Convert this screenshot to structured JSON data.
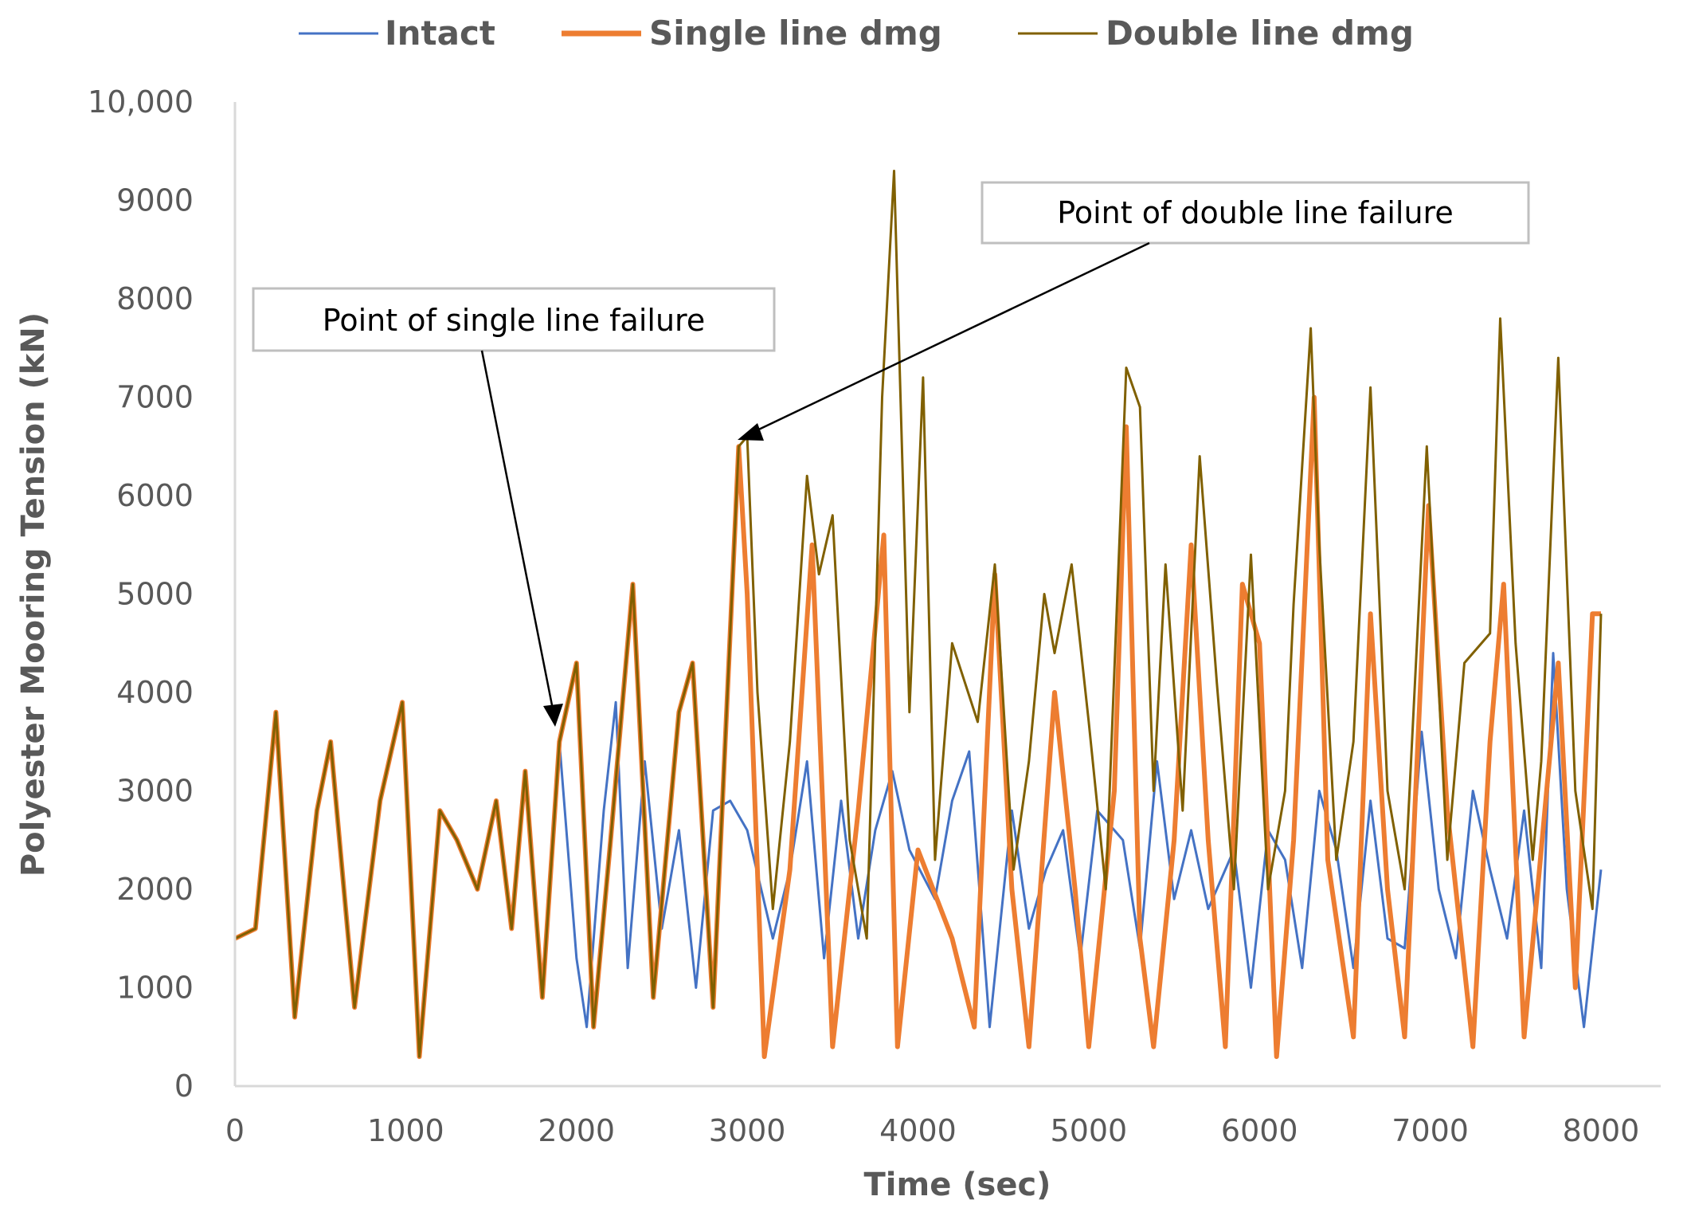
{
  "chart_data": {
    "type": "line",
    "xlabel": "Time (sec)",
    "ylabel": "Polyester Mooring  Tension (kN)",
    "xlim": [
      0,
      8000
    ],
    "ylim": [
      0,
      10000
    ],
    "x_ticks": [
      "0",
      "1000",
      "2000",
      "3000",
      "4000",
      "5000",
      "6000",
      "7000",
      "8000"
    ],
    "y_ticks": [
      "0",
      "1000",
      "2000",
      "3000",
      "4000",
      "5000",
      "6000",
      "7000",
      "8000",
      "9000",
      "10,000"
    ],
    "grid": false,
    "legend_position": "top",
    "series": [
      {
        "name": "Intact",
        "color": "#4472C4",
        "points": [
          [
            0,
            1500
          ],
          [
            120,
            1600
          ],
          [
            240,
            3800
          ],
          [
            350,
            700
          ],
          [
            480,
            2800
          ],
          [
            560,
            3500
          ],
          [
            700,
            800
          ],
          [
            850,
            2900
          ],
          [
            980,
            3900
          ],
          [
            1080,
            300
          ],
          [
            1200,
            2800
          ],
          [
            1300,
            2500
          ],
          [
            1420,
            2000
          ],
          [
            1530,
            2900
          ],
          [
            1620,
            1600
          ],
          [
            1700,
            3200
          ],
          [
            1800,
            900
          ],
          [
            1900,
            3500
          ],
          [
            2000,
            1300
          ],
          [
            2060,
            600
          ],
          [
            2160,
            2800
          ],
          [
            2230,
            3900
          ],
          [
            2300,
            1200
          ],
          [
            2400,
            3300
          ],
          [
            2500,
            1600
          ],
          [
            2600,
            2600
          ],
          [
            2700,
            1000
          ],
          [
            2800,
            2800
          ],
          [
            2900,
            2900
          ],
          [
            3000,
            2600
          ],
          [
            3150,
            1500
          ],
          [
            3250,
            2200
          ],
          [
            3350,
            3300
          ],
          [
            3450,
            1300
          ],
          [
            3550,
            2900
          ],
          [
            3650,
            1500
          ],
          [
            3750,
            2600
          ],
          [
            3850,
            3200
          ],
          [
            3950,
            2400
          ],
          [
            4100,
            1900
          ],
          [
            4200,
            2900
          ],
          [
            4300,
            3400
          ],
          [
            4420,
            600
          ],
          [
            4550,
            2800
          ],
          [
            4650,
            1600
          ],
          [
            4750,
            2200
          ],
          [
            4850,
            2600
          ],
          [
            4950,
            1300
          ],
          [
            5050,
            2800
          ],
          [
            5200,
            2500
          ],
          [
            5300,
            1400
          ],
          [
            5400,
            3300
          ],
          [
            5500,
            1900
          ],
          [
            5600,
            2600
          ],
          [
            5700,
            1800
          ],
          [
            5850,
            2400
          ],
          [
            5950,
            1000
          ],
          [
            6050,
            2600
          ],
          [
            6150,
            2300
          ],
          [
            6250,
            1200
          ],
          [
            6350,
            3000
          ],
          [
            6450,
            2400
          ],
          [
            6550,
            1200
          ],
          [
            6650,
            2900
          ],
          [
            6750,
            1500
          ],
          [
            6850,
            1400
          ],
          [
            6950,
            3600
          ],
          [
            7050,
            2000
          ],
          [
            7150,
            1300
          ],
          [
            7250,
            3000
          ],
          [
            7350,
            2200
          ],
          [
            7450,
            1500
          ],
          [
            7550,
            2800
          ],
          [
            7650,
            1200
          ],
          [
            7720,
            4400
          ],
          [
            7800,
            2000
          ],
          [
            7900,
            600
          ],
          [
            8000,
            2200
          ]
        ]
      },
      {
        "name": "Single line dmg",
        "color": "#ED7D31",
        "points": [
          [
            0,
            1500
          ],
          [
            120,
            1600
          ],
          [
            240,
            3800
          ],
          [
            350,
            700
          ],
          [
            480,
            2800
          ],
          [
            560,
            3500
          ],
          [
            700,
            800
          ],
          [
            850,
            2900
          ],
          [
            980,
            3900
          ],
          [
            1080,
            300
          ],
          [
            1200,
            2800
          ],
          [
            1300,
            2500
          ],
          [
            1420,
            2000
          ],
          [
            1530,
            2900
          ],
          [
            1620,
            1600
          ],
          [
            1700,
            3200
          ],
          [
            1800,
            900
          ],
          [
            1900,
            3500
          ],
          [
            2000,
            4300
          ],
          [
            2100,
            600
          ],
          [
            2200,
            2500
          ],
          [
            2330,
            5100
          ],
          [
            2450,
            900
          ],
          [
            2600,
            3800
          ],
          [
            2680,
            4300
          ],
          [
            2800,
            800
          ],
          [
            2950,
            6500
          ],
          [
            3000,
            5000
          ],
          [
            3100,
            300
          ],
          [
            3250,
            2200
          ],
          [
            3380,
            5500
          ],
          [
            3500,
            400
          ],
          [
            3650,
            2800
          ],
          [
            3800,
            5600
          ],
          [
            3880,
            400
          ],
          [
            4000,
            2400
          ],
          [
            4200,
            1500
          ],
          [
            4330,
            600
          ],
          [
            4450,
            5200
          ],
          [
            4550,
            2000
          ],
          [
            4650,
            400
          ],
          [
            4800,
            4000
          ],
          [
            4920,
            2000
          ],
          [
            5000,
            400
          ],
          [
            5150,
            3000
          ],
          [
            5220,
            6700
          ],
          [
            5300,
            1500
          ],
          [
            5380,
            400
          ],
          [
            5500,
            2500
          ],
          [
            5600,
            5500
          ],
          [
            5700,
            2500
          ],
          [
            5800,
            400
          ],
          [
            5900,
            5100
          ],
          [
            6000,
            4500
          ],
          [
            6100,
            300
          ],
          [
            6200,
            2500
          ],
          [
            6320,
            7000
          ],
          [
            6400,
            2300
          ],
          [
            6550,
            500
          ],
          [
            6650,
            4800
          ],
          [
            6750,
            2000
          ],
          [
            6850,
            500
          ],
          [
            6990,
            5900
          ],
          [
            7100,
            2800
          ],
          [
            7250,
            400
          ],
          [
            7350,
            3500
          ],
          [
            7430,
            5100
          ],
          [
            7550,
            500
          ],
          [
            7650,
            2400
          ],
          [
            7750,
            4300
          ],
          [
            7850,
            1000
          ],
          [
            7950,
            4800
          ],
          [
            8000,
            4800
          ]
        ]
      },
      {
        "name": "Double line dmg",
        "color": "#806000",
        "points": [
          [
            0,
            1500
          ],
          [
            120,
            1600
          ],
          [
            240,
            3800
          ],
          [
            350,
            700
          ],
          [
            480,
            2800
          ],
          [
            560,
            3500
          ],
          [
            700,
            800
          ],
          [
            850,
            2900
          ],
          [
            980,
            3900
          ],
          [
            1080,
            300
          ],
          [
            1200,
            2800
          ],
          [
            1300,
            2500
          ],
          [
            1420,
            2000
          ],
          [
            1530,
            2900
          ],
          [
            1620,
            1600
          ],
          [
            1700,
            3200
          ],
          [
            1800,
            900
          ],
          [
            1900,
            3500
          ],
          [
            2000,
            4300
          ],
          [
            2100,
            600
          ],
          [
            2200,
            2500
          ],
          [
            2330,
            5100
          ],
          [
            2450,
            900
          ],
          [
            2600,
            3800
          ],
          [
            2680,
            4300
          ],
          [
            2800,
            800
          ],
          [
            2950,
            6500
          ],
          [
            3000,
            6600
          ],
          [
            3060,
            4000
          ],
          [
            3150,
            1800
          ],
          [
            3250,
            3500
          ],
          [
            3350,
            6200
          ],
          [
            3420,
            5200
          ],
          [
            3500,
            5800
          ],
          [
            3600,
            2500
          ],
          [
            3700,
            1500
          ],
          [
            3790,
            7000
          ],
          [
            3860,
            9300
          ],
          [
            3950,
            3800
          ],
          [
            4030,
            7200
          ],
          [
            4100,
            2300
          ],
          [
            4200,
            4500
          ],
          [
            4350,
            3700
          ],
          [
            4450,
            5300
          ],
          [
            4560,
            2200
          ],
          [
            4650,
            3300
          ],
          [
            4740,
            5000
          ],
          [
            4800,
            4400
          ],
          [
            4900,
            5300
          ],
          [
            5000,
            3700
          ],
          [
            5100,
            2000
          ],
          [
            5220,
            7300
          ],
          [
            5300,
            6900
          ],
          [
            5380,
            3000
          ],
          [
            5450,
            5300
          ],
          [
            5550,
            2800
          ],
          [
            5650,
            6400
          ],
          [
            5750,
            4100
          ],
          [
            5850,
            2000
          ],
          [
            5950,
            5400
          ],
          [
            6050,
            2000
          ],
          [
            6150,
            3000
          ],
          [
            6200,
            4900
          ],
          [
            6300,
            7700
          ],
          [
            6350,
            5500
          ],
          [
            6450,
            2300
          ],
          [
            6550,
            3500
          ],
          [
            6650,
            7100
          ],
          [
            6750,
            3000
          ],
          [
            6850,
            2000
          ],
          [
            6980,
            6500
          ],
          [
            7100,
            2300
          ],
          [
            7200,
            4300
          ],
          [
            7350,
            4600
          ],
          [
            7410,
            7800
          ],
          [
            7500,
            4500
          ],
          [
            7600,
            2300
          ],
          [
            7650,
            3300
          ],
          [
            7750,
            7400
          ],
          [
            7850,
            3000
          ],
          [
            7950,
            1800
          ],
          [
            8000,
            4800
          ]
        ]
      }
    ],
    "annotations": [
      {
        "text": "Point of single line failure",
        "x": 1900,
        "y": 3600
      },
      {
        "text": "Point of double line failure",
        "x": 2970,
        "y": 6550
      }
    ]
  }
}
